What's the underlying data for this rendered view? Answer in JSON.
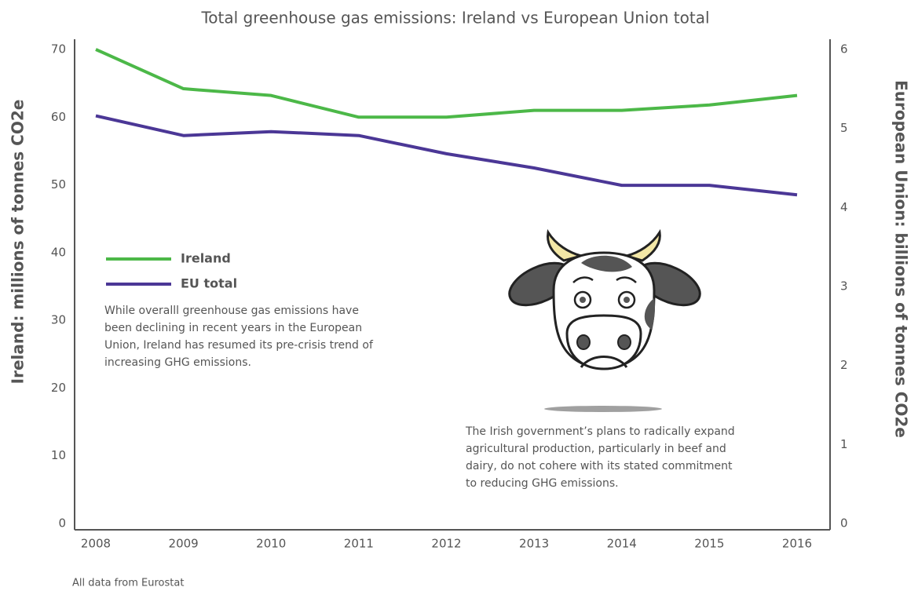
{
  "chart_data": {
    "type": "line",
    "title": "Total greenhouse gas emissions: Ireland vs European Union total",
    "y_label": "Ireland: millions of tonnes CO2e",
    "y2_label": "European Union: billions of tonnes CO2e",
    "categories": [
      "2008",
      "2009",
      "2010",
      "2011",
      "2012",
      "2013",
      "2014",
      "2015",
      "2016"
    ],
    "series": [
      {
        "name": "Ireland",
        "color": "#4cb848",
        "axis": "y",
        "values": [
          70,
          64.2,
          63.2,
          60,
          60,
          61,
          61,
          61.8,
          63.2
        ]
      },
      {
        "name": "EU total",
        "color": "#4b3796",
        "axis": "y2",
        "values": [
          5.16,
          4.91,
          4.96,
          4.91,
          4.68,
          4.5,
          4.28,
          4.28,
          4.16
        ]
      }
    ],
    "ylim": [
      0,
      70
    ],
    "yticks": [
      0,
      10,
      20,
      30,
      40,
      50,
      60,
      70
    ],
    "y2lim": [
      0,
      6
    ],
    "y2ticks": [
      0,
      1,
      2,
      3,
      4,
      5,
      6
    ],
    "legend": "left",
    "grid": false,
    "annotations": [
      [
        "While overalll greenhouse gas emissions have",
        "been declining in recent years in the European",
        "Union, Ireland has resumed its pre-crisis trend of",
        "increasing GHG emissions."
      ],
      [
        "The Irish government’s plans to radically expand",
        "agricultural production, particularly in beef and",
        "dairy, do not cohere with its stated commitment",
        "to reducing GHG emissions."
      ]
    ],
    "source": "All data from Eurostat"
  }
}
